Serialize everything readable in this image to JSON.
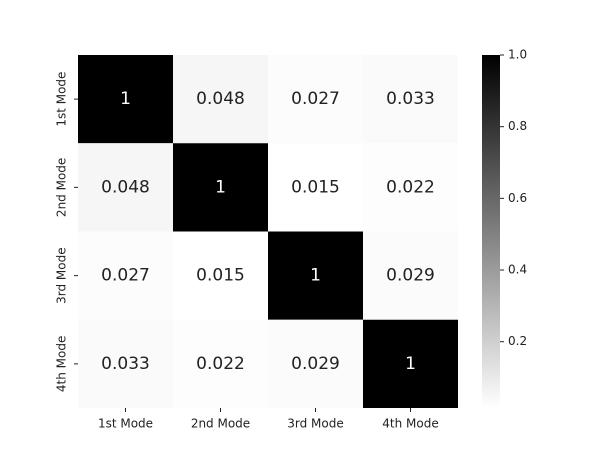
{
  "chart_data": {
    "type": "heatmap",
    "x_categories": [
      "1st Mode",
      "2nd Mode",
      "3rd Mode",
      "4th Mode"
    ],
    "y_categories": [
      "1st Mode",
      "2nd Mode",
      "3rd Mode",
      "4th Mode"
    ],
    "values": [
      [
        1,
        0.048,
        0.027,
        0.033
      ],
      [
        0.048,
        1,
        0.015,
        0.022
      ],
      [
        0.027,
        0.015,
        1,
        0.029
      ],
      [
        0.033,
        0.022,
        0.029,
        1
      ]
    ],
    "colors": [
      "#ffffff",
      "#000000"
    ],
    "zlim": [
      0.015,
      1
    ],
    "zticks": [
      0.2,
      0.4,
      0.6,
      0.8,
      {
        "value": 1,
        "label": "1.0"
      }
    ]
  }
}
